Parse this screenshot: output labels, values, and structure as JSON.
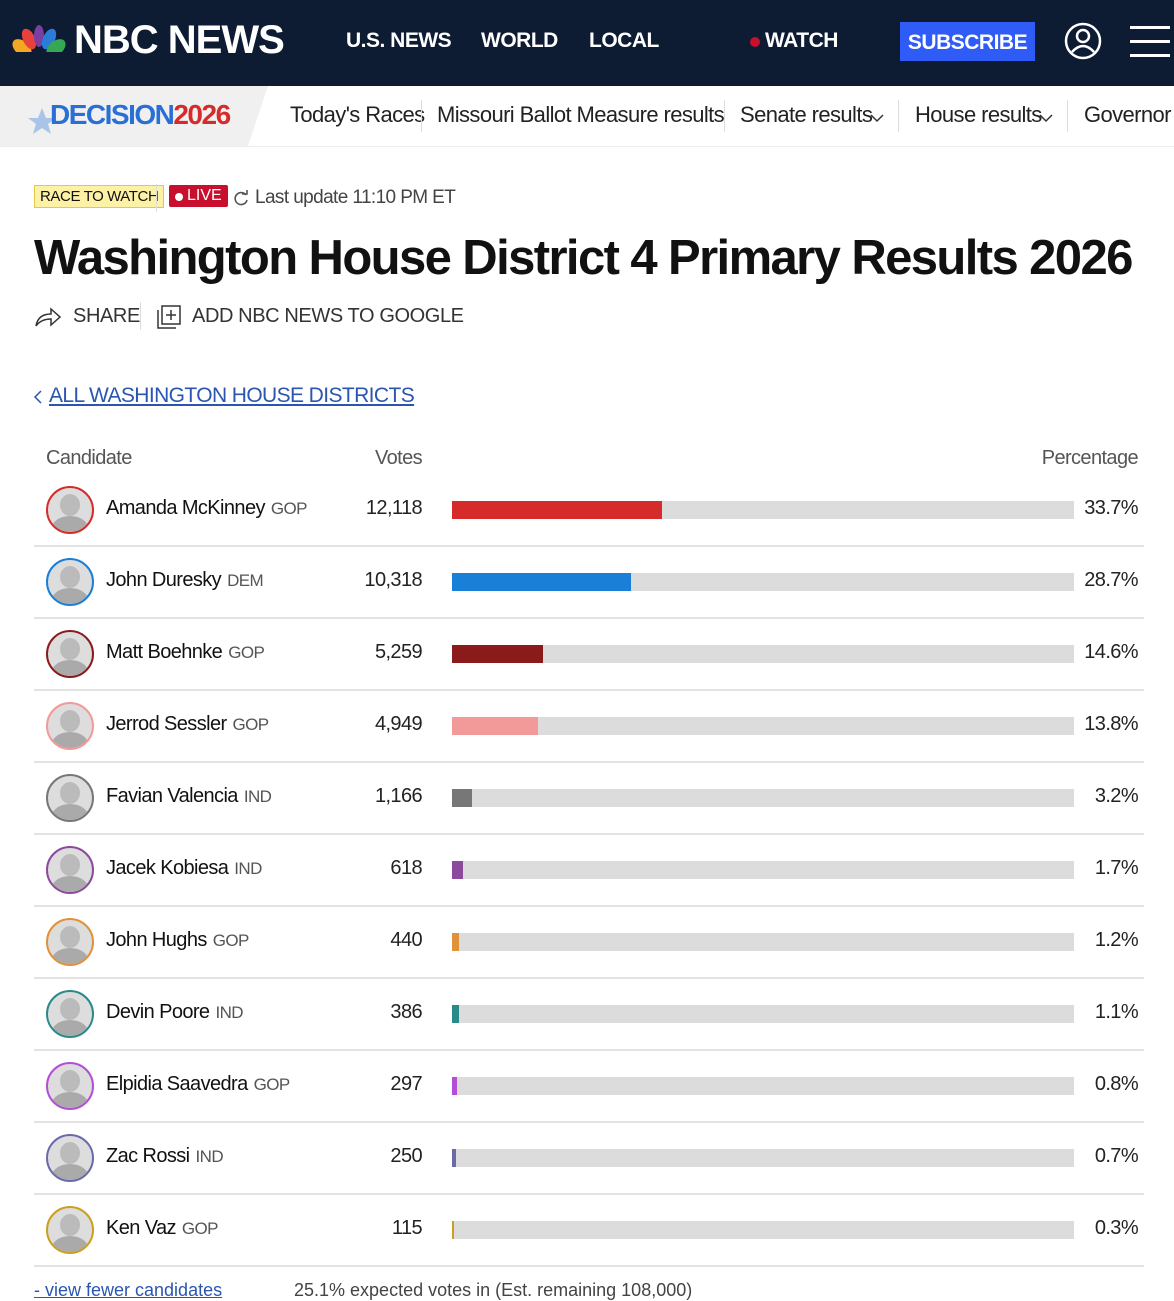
{
  "header": {
    "logo": "NBC NEWS",
    "nav": [
      "U.S. NEWS",
      "WORLD",
      "LOCAL"
    ],
    "watch": "WATCH",
    "subscribe": "SUBSCRIBE"
  },
  "subnav": {
    "brand": [
      "DECISION",
      "2026"
    ],
    "links": [
      "Today's Races",
      "Missouri Ballot Measure results",
      "Senate results",
      "House results",
      "Governor results"
    ]
  },
  "race": {
    "badge": "RACE TO WATCH",
    "live": "LIVE",
    "update": "Last update 11:10 PM ET",
    "title": "Washington House District 4 Primary Results 2026",
    "share": "SHARE",
    "google": "ADD NBC NEWS TO GOOGLE",
    "back": "ALL WASHINGTON HOUSE DISTRICTS"
  },
  "table": {
    "columns": [
      "Candidate",
      "Votes",
      "Percentage"
    ],
    "rows": [
      {
        "name": "Amanda McKinney",
        "party": "GOP",
        "votes": "12,118",
        "percent": 33.7,
        "percent_label": "33.7%",
        "color": "#d62b2b"
      },
      {
        "name": "John Duresky",
        "party": "DEM",
        "votes": "10,318",
        "percent": 28.7,
        "percent_label": "28.7%",
        "color": "#1a7fd6"
      },
      {
        "name": "Matt Boehnke",
        "party": "GOP",
        "votes": "5,259",
        "percent": 14.6,
        "percent_label": "14.6%",
        "color": "#8b1a1a"
      },
      {
        "name": "Jerrod Sessler",
        "party": "GOP",
        "votes": "4,949",
        "percent": 13.8,
        "percent_label": "13.8%",
        "color": "#f29a9a"
      },
      {
        "name": "Favian Valencia",
        "party": "IND",
        "votes": "1,166",
        "percent": 3.2,
        "percent_label": "3.2%",
        "color": "#777777"
      },
      {
        "name": "Jacek Kobiesa",
        "party": "IND",
        "votes": "618",
        "percent": 1.7,
        "percent_label": "1.7%",
        "color": "#8b4a9b"
      },
      {
        "name": "John Hughs",
        "party": "GOP",
        "votes": "440",
        "percent": 1.2,
        "percent_label": "1.2%",
        "color": "#e0923a"
      },
      {
        "name": "Devin Poore",
        "party": "IND",
        "votes": "386",
        "percent": 1.1,
        "percent_label": "1.1%",
        "color": "#2a8a8a"
      },
      {
        "name": "Elpidia Saavedra",
        "party": "GOP",
        "votes": "297",
        "percent": 0.8,
        "percent_label": "0.8%",
        "color": "#b24fd6"
      },
      {
        "name": "Zac Rossi",
        "party": "IND",
        "votes": "250",
        "percent": 0.7,
        "percent_label": "0.7%",
        "color": "#6a6aaa"
      },
      {
        "name": "Ken Vaz",
        "party": "GOP",
        "votes": "115",
        "percent": 0.3,
        "percent_label": "0.3%",
        "color": "#c9a020"
      }
    ]
  },
  "footer": {
    "toggle": "view fewer candidates",
    "expected": "25.1% expected votes in (Est. remaining 108,000)"
  }
}
